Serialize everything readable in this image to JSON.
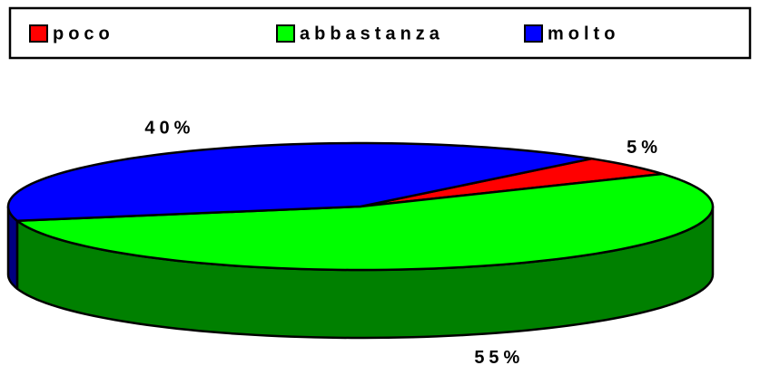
{
  "chart_data": {
    "type": "pie3d",
    "categories": [
      "poco",
      "abbastanza",
      "molto"
    ],
    "values": [
      5,
      55,
      40
    ],
    "value_labels": [
      "5%",
      "55%",
      "40%"
    ],
    "colors": [
      "#ff0000",
      "#00ff00",
      "#0000ff"
    ],
    "legend": "top"
  }
}
